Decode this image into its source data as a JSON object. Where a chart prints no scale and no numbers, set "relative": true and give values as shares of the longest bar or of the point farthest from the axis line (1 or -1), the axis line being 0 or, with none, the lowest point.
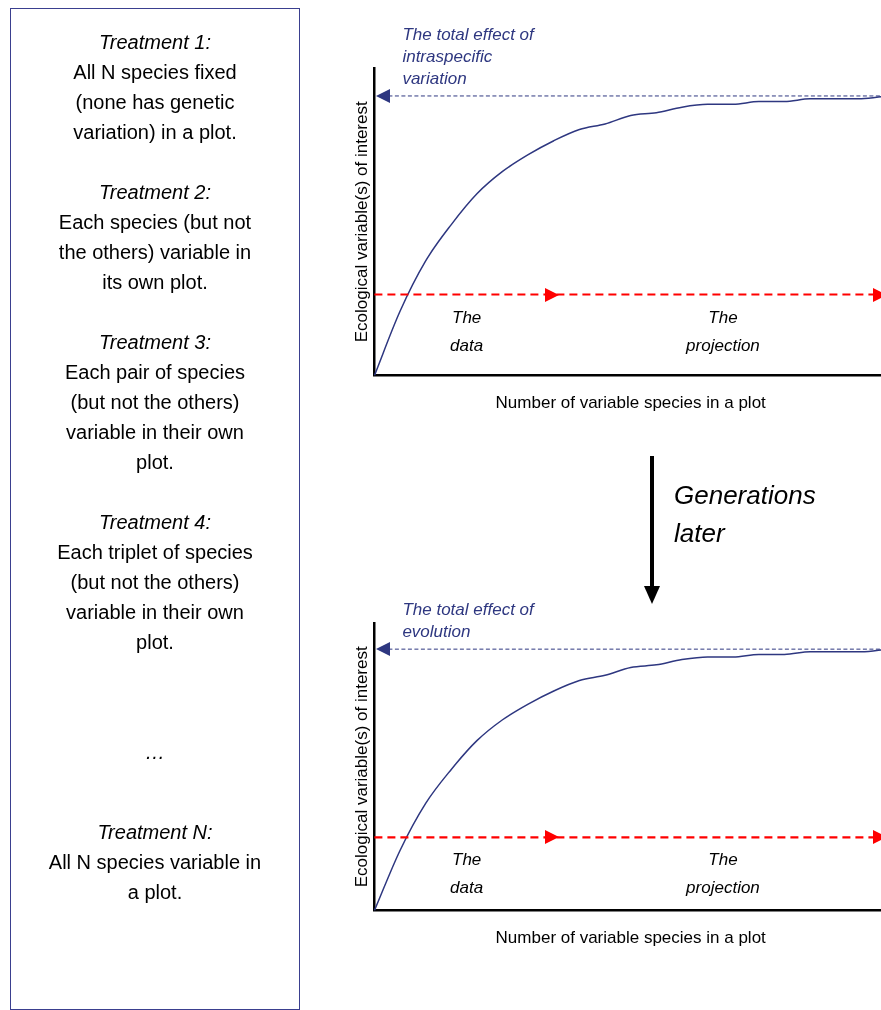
{
  "chart_data": [
    {
      "type": "other",
      "annotations": [
        "Treatment 1:",
        "All N species fixed (none has genetic variation) in a plot.",
        "Treatment 2:",
        "Each species (but not the others) variable in its own plot.",
        "Treatment 3:",
        "Each pair of species (but not the others) variable in their own plot.",
        "Treatment 4:",
        "Each triplet of species (but not the others) variable in their own plot.",
        "…",
        "Treatment N:",
        "All N species variable in a plot."
      ]
    },
    {
      "type": "line",
      "relative": true,
      "xlabel": "Number of variable species in a plot",
      "ylabel": "Ecological variable(s) of interest",
      "categories": [
        null,
        null,
        null,
        null,
        null,
        null,
        null,
        null,
        null,
        null,
        null,
        null,
        null,
        null,
        null,
        null,
        null,
        null,
        null,
        null,
        null
      ],
      "series": [
        {
          "color": "#2e3780",
          "values": [
            0,
            0.23,
            0.41,
            0.54,
            0.65,
            0.73,
            0.79,
            0.84,
            0.88,
            0.9,
            0.93,
            0.94,
            0.96,
            0.97,
            0.97,
            0.98,
            0.98,
            0.99,
            0.99,
            0.99,
            1
          ]
        }
      ],
      "marker": "none",
      "legend": false,
      "grid": false,
      "ref_lines": [
        {
          "axis": "y",
          "value": 1,
          "label": "The total effect of intraspecific variation",
          "color": "#2e3780",
          "line_style": "dashed"
        },
        {
          "axis": "y",
          "value": 0.29,
          "color": "#ff0000",
          "line_style": "dashed"
        }
      ],
      "annotations": [
        "The data",
        "The projection"
      ]
    },
    {
      "type": "other",
      "annotations": [
        "Generations later"
      ]
    },
    {
      "type": "line",
      "relative": true,
      "xlabel": "Number of variable species in a plot",
      "ylabel": "Ecological variable(s) of interest",
      "categories": [
        null,
        null,
        null,
        null,
        null,
        null,
        null,
        null,
        null,
        null,
        null,
        null,
        null,
        null,
        null,
        null,
        null,
        null,
        null,
        null,
        null
      ],
      "series": [
        {
          "color": "#2e3780",
          "values": [
            0,
            0.23,
            0.41,
            0.54,
            0.65,
            0.73,
            0.79,
            0.84,
            0.88,
            0.9,
            0.93,
            0.94,
            0.96,
            0.97,
            0.97,
            0.98,
            0.98,
            0.99,
            0.99,
            0.99,
            1
          ]
        }
      ],
      "marker": "none",
      "legend": false,
      "grid": false,
      "ref_lines": [
        {
          "axis": "y",
          "value": 1,
          "label": "The total effect of evolution",
          "color": "#2e3780",
          "line_style": "dashed"
        },
        {
          "axis": "y",
          "value": 0.28,
          "color": "#ff0000",
          "line_style": "dashed"
        }
      ],
      "annotations": [
        "The data",
        "The projection"
      ]
    }
  ]
}
